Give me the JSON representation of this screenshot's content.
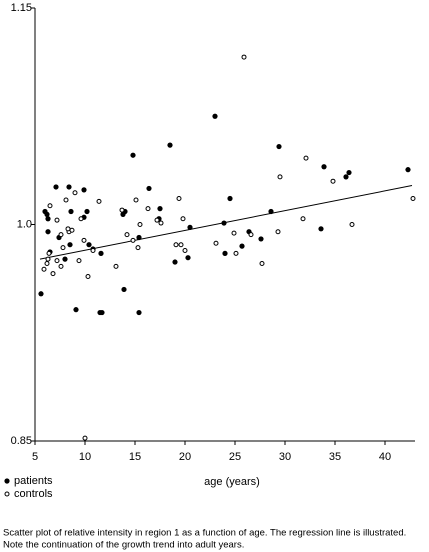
{
  "chart_data": {
    "type": "scatter",
    "x_label": "age (years)",
    "xlim": [
      5,
      43
    ],
    "xticks": [
      5,
      10,
      15,
      20,
      25,
      30,
      35,
      40
    ],
    "ylim": [
      0.85,
      1.15
    ],
    "yticks": [
      0.85,
      {
        "value": 1,
        "label": "1.0"
      },
      1.15
    ],
    "series": [
      {
        "name": "patients",
        "color": "#000000",
        "marker": "filled",
        "x": [
          5.6,
          6.0,
          6.2,
          6.3,
          6.3,
          6.5,
          7.1,
          7.4,
          8.0,
          8.4,
          8.5,
          8.6,
          9.1,
          9.9,
          9.9,
          10.2,
          10.4,
          10.8,
          11.5,
          11.7,
          11.6,
          13.8,
          13.9,
          14.0,
          14.8,
          15.4,
          15.4,
          16.4,
          17.4,
          17.5,
          18.5,
          19.0,
          20.3,
          20.5,
          23.0,
          23.9,
          24.0,
          24.5,
          25.7,
          26.4,
          27.6,
          28.6,
          29.4,
          33.6,
          33.9,
          36.1,
          36.4,
          42.3
        ],
        "values": [
          0.952,
          1.009,
          1.007,
          1.004,
          0.995,
          0.981,
          1.026,
          0.991,
          0.976,
          1.026,
          0.986,
          1.009,
          0.941,
          1.024,
          1.005,
          1.009,
          0.986,
          0.983,
          0.939,
          0.939,
          0.98,
          1.007,
          0.955,
          1.009,
          1.048,
          0.991,
          0.939,
          1.025,
          1.004,
          1.011,
          1.055,
          0.974,
          0.977,
          0.998,
          1.075,
          1.001,
          0.98,
          1.018,
          0.985,
          0.995,
          0.99,
          1.009,
          1.054,
          0.997,
          1.04,
          1.033,
          1.036,
          1.038
        ]
      },
      {
        "name": "controls",
        "color": "#000000",
        "marker": "open",
        "x": [
          5.9,
          6.2,
          6.3,
          6.4,
          6.5,
          6.8,
          7.2,
          7.2,
          7.6,
          7.6,
          7.8,
          8.1,
          8.4,
          8.3,
          8.7,
          9.0,
          9.4,
          9.6,
          9.9,
          10.0,
          10.3,
          10.8,
          11.4,
          13.1,
          13.7,
          14.2,
          14.8,
          15.1,
          15.5,
          15.3,
          16.3,
          17.2,
          17.6,
          19.1,
          19.4,
          19.6,
          19.8,
          20.0,
          23.1,
          24.9,
          25.1,
          25.9,
          26.6,
          27.7,
          29.3,
          29.5,
          31.8,
          32.1,
          34.8,
          36.7,
          42.8
        ],
        "values": [
          0.969,
          0.973,
          0.976,
          0.98,
          1.013,
          0.966,
          1.003,
          0.975,
          0.993,
          0.971,
          0.984,
          1.017,
          0.995,
          0.997,
          0.996,
          1.022,
          0.975,
          1.004,
          0.989,
          0.852,
          0.964,
          0.982,
          1.016,
          0.971,
          1.01,
          0.993,
          0.989,
          1.017,
          1.0,
          0.984,
          1.011,
          1.003,
          1.001,
          0.986,
          1.018,
          0.986,
          1.004,
          0.982,
          0.987,
          0.994,
          0.98,
          1.116,
          0.993,
          0.973,
          0.995,
          1.033,
          1.004,
          1.046,
          1.03,
          1.0,
          1.018
        ]
      }
    ],
    "regression": {
      "x": [
        5.5,
        42.7
      ],
      "y": [
        0.976,
        1.027
      ]
    },
    "caption": [
      "Scatter plot of relative intensity in region 1 as a function of age.  The regression line is illustrated.",
      "Note the continuation of the growth trend into adult years."
    ]
  }
}
